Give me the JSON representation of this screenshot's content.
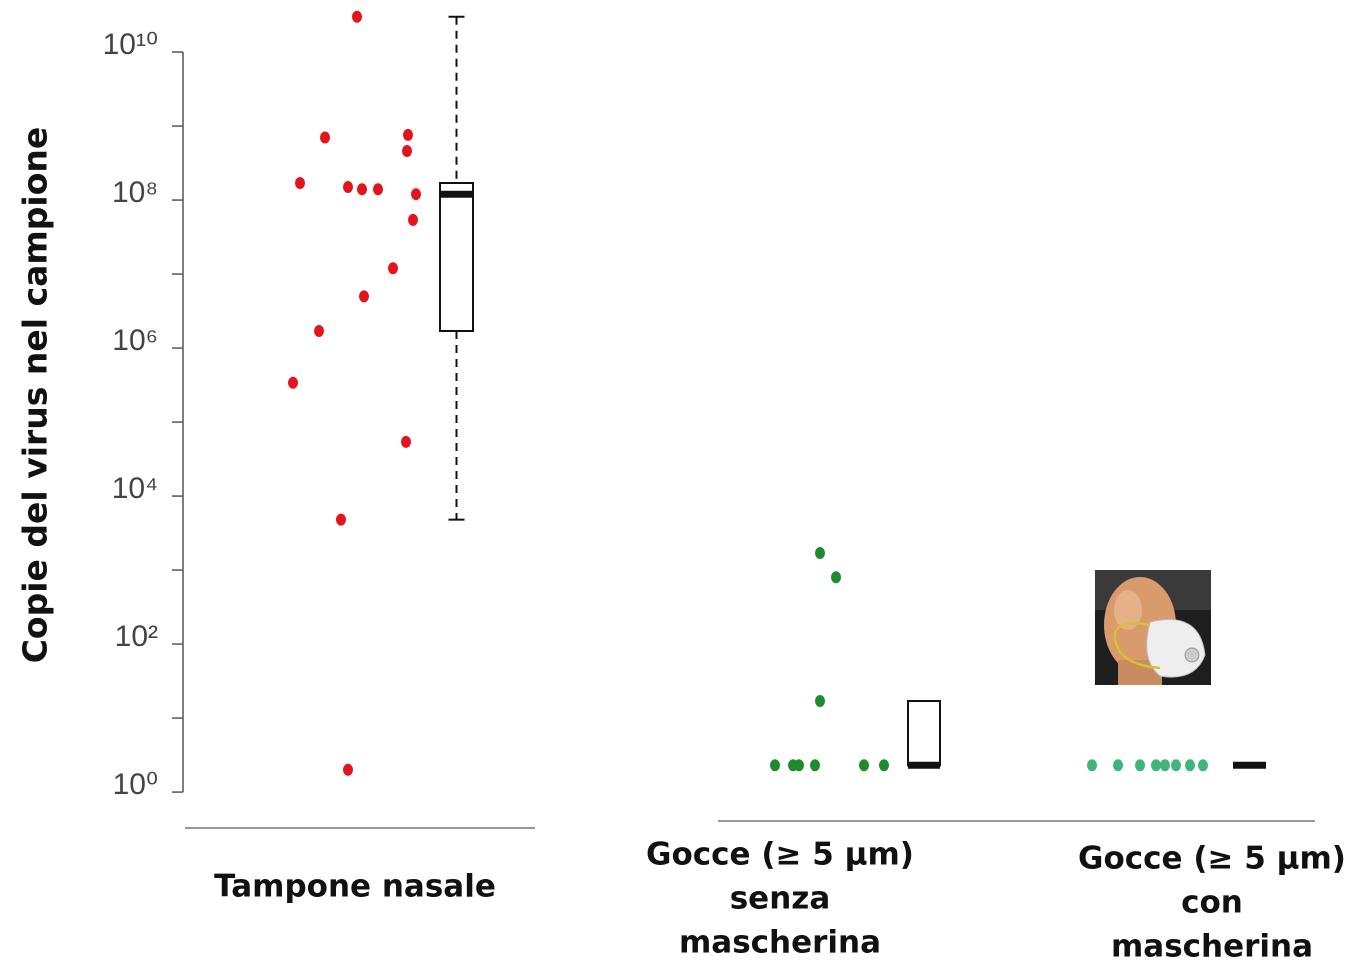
{
  "chart_data": {
    "type": "strip-box",
    "y_label": "Copie del virus nel campione",
    "log_scale": true,
    "ylim": [
      0.327,
      37000000000
    ],
    "yticks": [
      {
        "value": 1,
        "label": "10⁰"
      },
      {
        "value": 100,
        "label": "10²"
      },
      {
        "value": 10000,
        "label": "10⁴"
      },
      {
        "value": 1000000,
        "label": "10⁶"
      },
      {
        "value": 100000000,
        "label": "10⁸"
      },
      {
        "value": 10000000000,
        "label": "10¹⁰"
      }
    ],
    "yticks_minor": [
      10,
      1000,
      100000,
      10000000,
      1000000000
    ],
    "highlight_color": "#ff0000",
    "groups": [
      {
        "category": [
          "Tampone nasale"
        ],
        "color": "#e3141c",
        "values": [
          30000000000,
          700000000,
          760000000,
          460000000,
          170000000,
          150000000,
          140000000,
          140000000,
          120000000,
          54000000,
          12000000,
          5000000,
          1700000,
          340000,
          54000,
          4800,
          2
        ],
        "box": {
          "whisker_high": 30000000000,
          "q3": 170000000,
          "median": 120000000,
          "q1": 1700000,
          "whisker_low": 4800
        }
      },
      {
        "category": [
          "Gocce (≥ 5 μm)",
          "senza",
          "mascherina"
        ],
        "color": "#1e8c2c",
        "values": [
          1700,
          800,
          17,
          2.3,
          2.3,
          2.3,
          2.3,
          2.3,
          2.3
        ],
        "box": {
          "q3": 17,
          "median": 2.3,
          "q1": 2.3
        }
      },
      {
        "category": [
          "Gocce (≥ 5 μm)",
          "con",
          "mascherina"
        ],
        "color": "#3fb57c",
        "values": [
          2.3,
          2.3,
          2.3,
          2.3,
          2.3,
          2.3,
          2.3,
          2.3
        ],
        "box": {
          "median": 2.3
        }
      }
    ]
  }
}
